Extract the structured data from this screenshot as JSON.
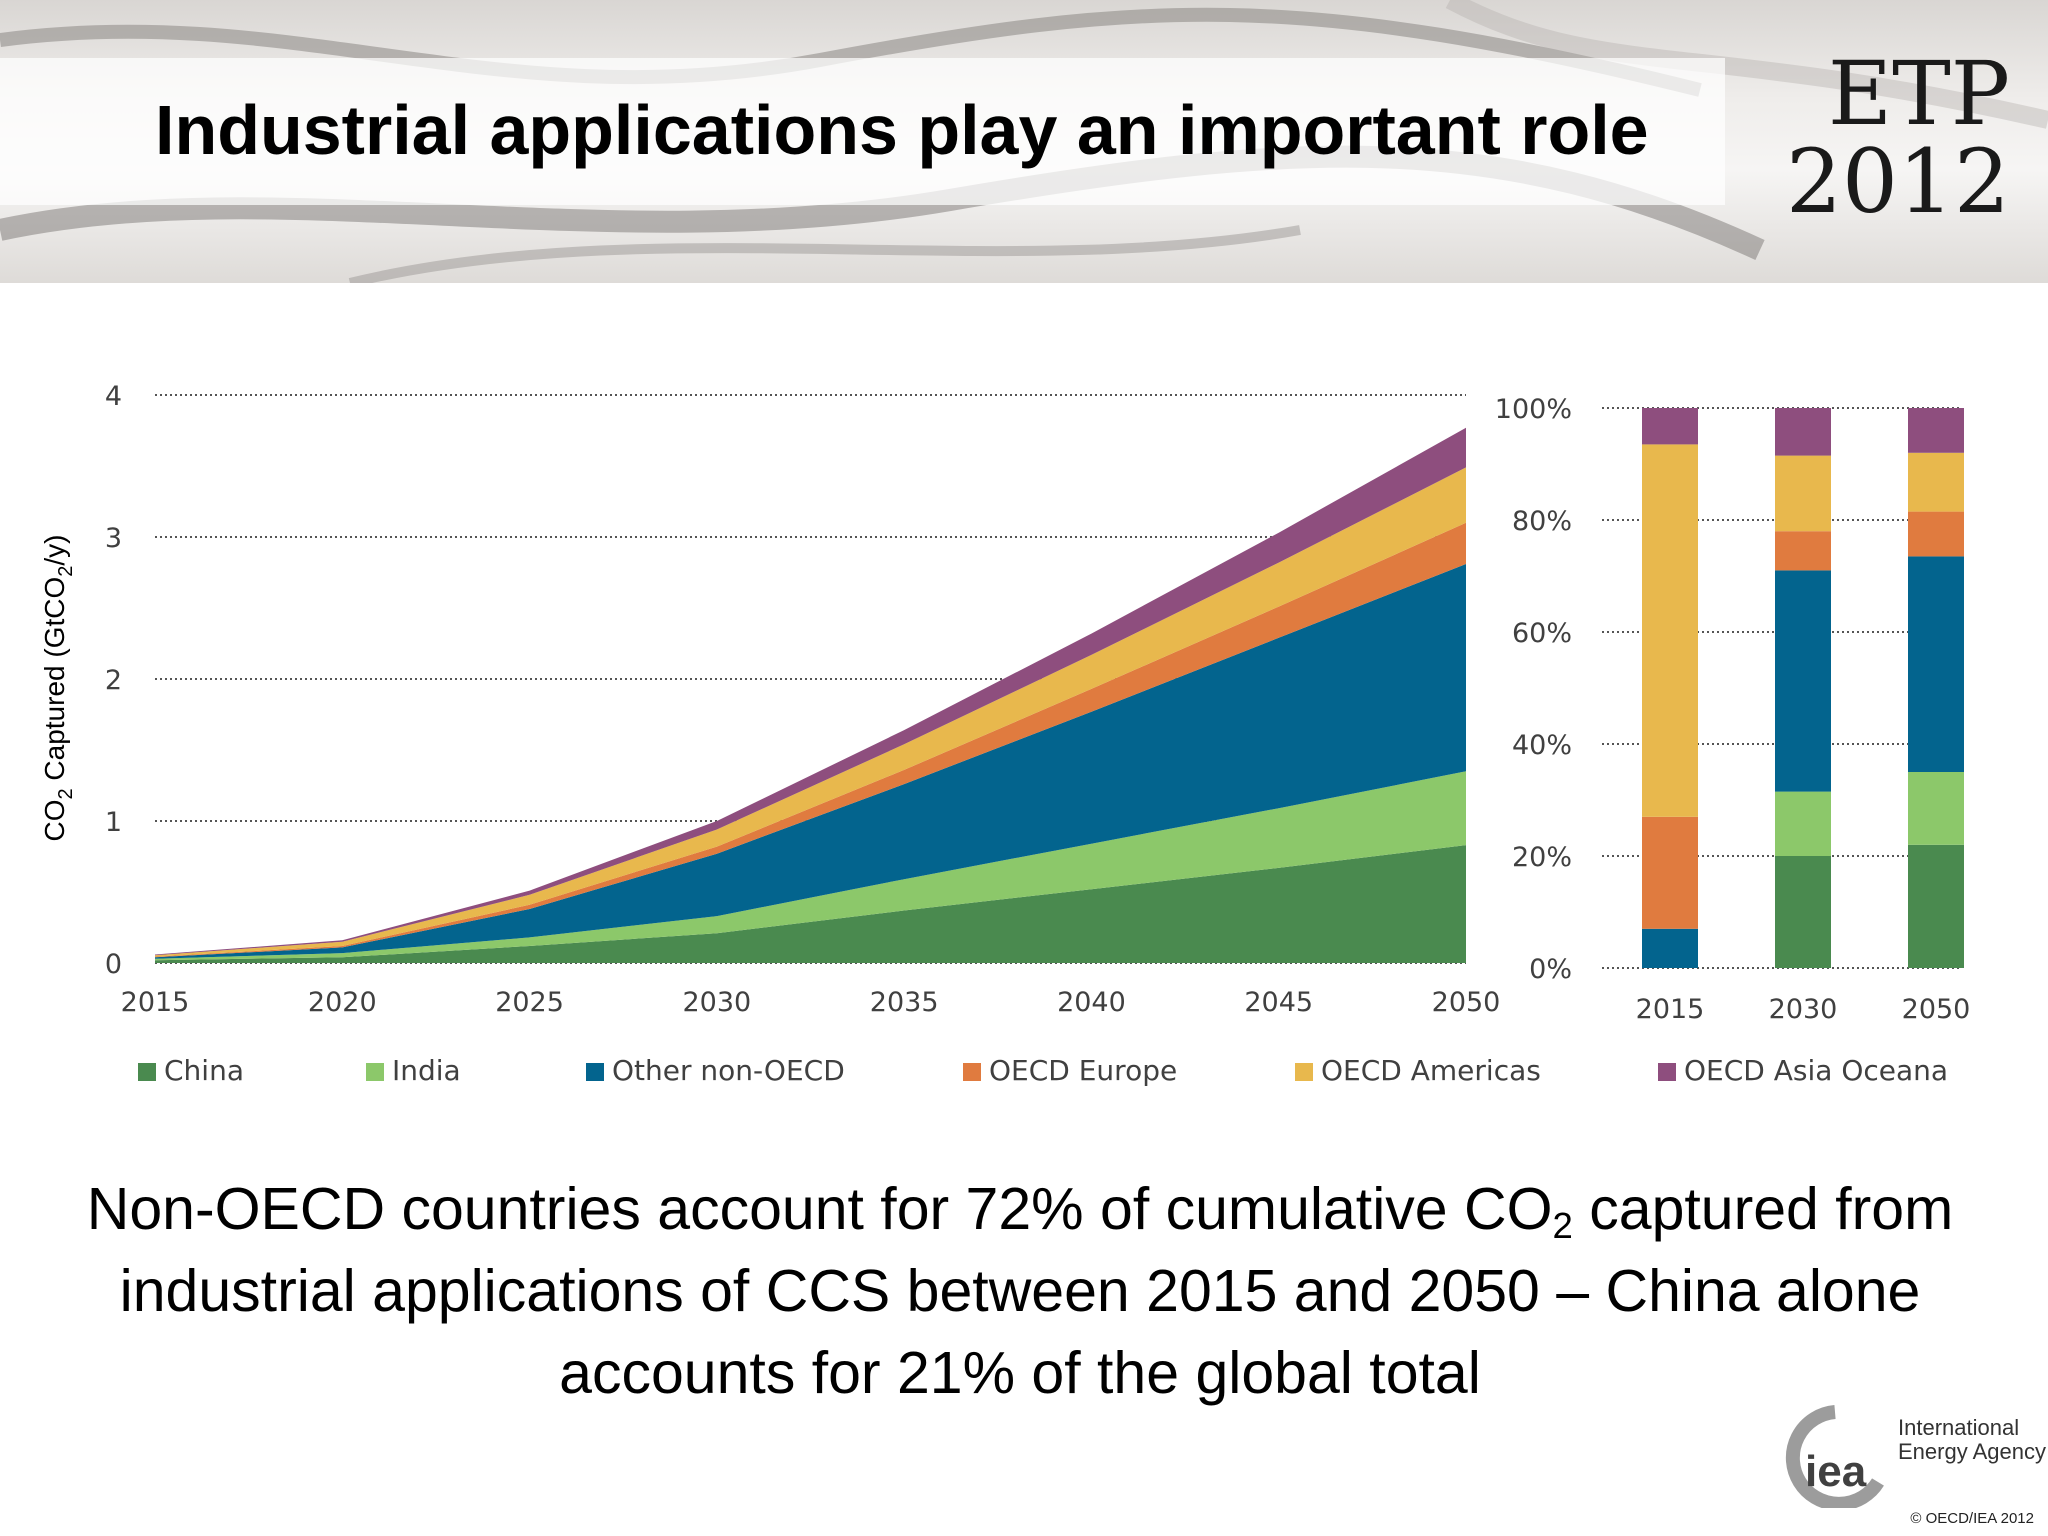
{
  "slide": {
    "title": "Industrial applications play an important role",
    "logo_line1": "ETP",
    "logo_line2": "2012",
    "caption_before_sub": "Non-OECD countries account for 72% of cumulative CO",
    "caption_sub": "2",
    "caption_after_sub": " captured from industrial applications of CCS between 2015 and 2050 – China alone accounts for 21% of the global total",
    "iea_mark": "iea",
    "iea_name_line1": "International",
    "iea_name_line2": "Energy Agency",
    "copyright": "© OECD/IEA 2012"
  },
  "chart_data": [
    {
      "type": "area",
      "stacked": true,
      "ylabel_before_sub": "CO",
      "ylabel_sub": "2",
      "ylabel_mid": " Captured (GtCO",
      "ylabel_sub2": "2",
      "ylabel_after_sub": "/y)",
      "x": [
        2015,
        2020,
        2025,
        2030,
        2035,
        2040,
        2045,
        2050
      ],
      "x_ticks": [
        "2015",
        "2020",
        "2025",
        "2030",
        "2035",
        "2040",
        "2045",
        "2050"
      ],
      "ylim": [
        0,
        4
      ],
      "y_ticks": [
        "0",
        "1",
        "2",
        "3",
        "4"
      ],
      "grid": "horizontal-dotted",
      "series": [
        {
          "name": "China",
          "color": "#4a8a4f",
          "values": [
            0.02,
            0.04,
            0.12,
            0.21,
            0.37,
            0.52,
            0.67,
            0.83
          ]
        },
        {
          "name": "India",
          "color": "#8cc86a",
          "values": [
            0.01,
            0.03,
            0.06,
            0.12,
            0.22,
            0.32,
            0.42,
            0.52
          ]
        },
        {
          "name": "Other non-OECD",
          "color": "#03648e",
          "values": [
            0.01,
            0.04,
            0.2,
            0.44,
            0.67,
            0.93,
            1.2,
            1.46
          ]
        },
        {
          "name": "OECD Europe",
          "color": "#e07b3f",
          "values": [
            0.005,
            0.01,
            0.03,
            0.05,
            0.1,
            0.16,
            0.22,
            0.29
          ]
        },
        {
          "name": "OECD Americas",
          "color": "#e8b84d",
          "values": [
            0.01,
            0.03,
            0.07,
            0.12,
            0.18,
            0.24,
            0.31,
            0.39
          ]
        },
        {
          "name": "OECD Asia Oceana",
          "color": "#8e4e7e",
          "values": [
            0.005,
            0.01,
            0.03,
            0.06,
            0.1,
            0.15,
            0.21,
            0.28
          ]
        }
      ]
    },
    {
      "type": "bar",
      "stacked": true,
      "categories": [
        "2015",
        "2030",
        "2050"
      ],
      "ylim": [
        0,
        100
      ],
      "y_ticks": [
        "0%",
        "20%",
        "40%",
        "60%",
        "80%",
        "100%"
      ],
      "grid": "horizontal-dotted",
      "series": [
        {
          "name": "China",
          "color": "#4a8a4f",
          "values": [
            0,
            20,
            22
          ]
        },
        {
          "name": "India",
          "color": "#8cc86a",
          "values": [
            0,
            11.5,
            13
          ]
        },
        {
          "name": "Other non-OECD",
          "color": "#03648e",
          "values": [
            7,
            39.5,
            38.5
          ]
        },
        {
          "name": "OECD Europe",
          "color": "#e07b3f",
          "values": [
            20,
            7,
            8
          ]
        },
        {
          "name": "OECD Americas",
          "color": "#e8b84d",
          "values": [
            66.5,
            13.5,
            10.5
          ]
        },
        {
          "name": "OECD Asia Oceana",
          "color": "#8e4e7e",
          "values": [
            6.5,
            8.5,
            8
          ]
        }
      ]
    }
  ]
}
